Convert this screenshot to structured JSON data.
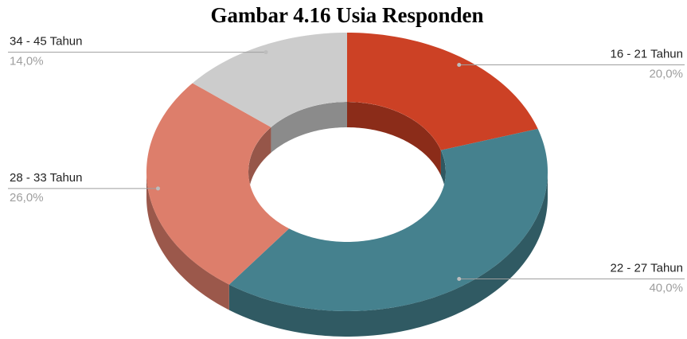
{
  "chart_data": {
    "type": "pie",
    "donut": true,
    "title": "Gambar 4.16 Usia Responden",
    "categories": [
      "16 - 21 Tahun",
      "22 - 27 Tahun",
      "28 - 33 Tahun",
      "34 - 45 Tahun"
    ],
    "values": [
      20,
      40,
      26,
      14
    ],
    "value_labels": [
      "20,0%",
      "40,0%",
      "26,0%",
      "14,0%"
    ],
    "colors": [
      "#cc4125",
      "#45818e",
      "#dd7e6b",
      "#cccccc"
    ]
  }
}
